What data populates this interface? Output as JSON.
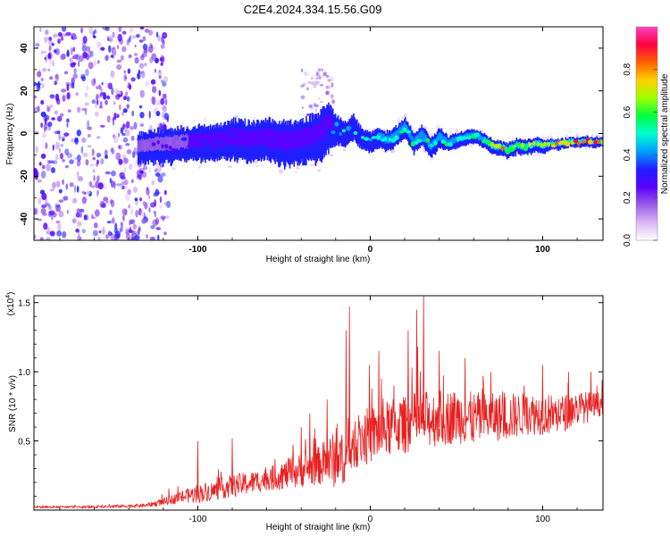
{
  "title": "C2E4.2024.334.15.56.G09",
  "chart_data": [
    {
      "type": "heatmap",
      "name": "spectrogram",
      "xlabel": "Height of straight line (km)",
      "ylabel": "Frequency (Hz)",
      "xlim": [
        -195,
        135
      ],
      "ylim": [
        -50,
        50
      ],
      "xticks": [
        -100,
        0,
        100
      ],
      "xtick_labels": [
        "-100",
        "0",
        "100"
      ],
      "yticks": [
        -40,
        -20,
        0,
        20,
        40
      ],
      "ytick_labels": [
        "-40",
        "-20",
        "0",
        "20",
        "40"
      ],
      "colorbar": {
        "label": "Normalized spectral amplitude",
        "range": [
          0,
          1
        ],
        "ticks": [
          0.0,
          0.2,
          0.4,
          0.6,
          0.8
        ],
        "tick_labels": [
          "0.0",
          "0.2",
          "0.4",
          "0.6",
          "0.8"
        ],
        "colors": [
          "#ffffff",
          "#d9b8f5",
          "#9a5ce8",
          "#5a00ff",
          "#1e1eff",
          "#00a0ff",
          "#00ffd0",
          "#00ff40",
          "#a0ff00",
          "#ffd000",
          "#ff6000",
          "#ff0040",
          "#ff40c0"
        ]
      },
      "noise_region_x": [
        -195,
        -125
      ],
      "ridge": {
        "x": [
          -135,
          -120,
          -105,
          -90,
          -80,
          -70,
          -60,
          -50,
          -40,
          -30,
          -25,
          -20,
          -15,
          -10,
          -5,
          0,
          5,
          10,
          15,
          20,
          25,
          30,
          35,
          40,
          45,
          50,
          55,
          60,
          65,
          70,
          75,
          80,
          85,
          90,
          95,
          100,
          105,
          110,
          115,
          120,
          125,
          130,
          135
        ],
        "freq": [
          -7,
          -6,
          -5,
          -4,
          -3,
          -4,
          -3,
          -5,
          -4,
          -2,
          3,
          2,
          0,
          3,
          -3,
          -4,
          -2,
          -4,
          -1,
          3,
          -5,
          -1,
          -7,
          -2,
          -5,
          -3,
          -2,
          -1,
          -3,
          -6,
          -7,
          -8,
          -6,
          -7,
          -5,
          -6,
          -5,
          -5,
          -4,
          -4,
          -4,
          -4,
          -4
        ],
        "width": [
          6,
          7,
          7,
          7,
          8,
          8,
          8,
          9,
          9,
          10,
          10,
          6,
          5,
          5,
          4,
          4,
          4,
          4,
          4,
          4,
          4,
          4,
          4,
          4,
          3,
          3,
          3,
          3,
          3,
          3,
          3,
          3,
          3,
          3,
          3,
          3,
          2,
          2,
          2,
          2,
          2,
          2,
          2
        ],
        "amplitude": [
          0.2,
          0.25,
          0.3,
          0.3,
          0.3,
          0.3,
          0.3,
          0.3,
          0.3,
          0.35,
          0.35,
          0.45,
          0.45,
          0.45,
          0.5,
          0.5,
          0.55,
          0.55,
          0.55,
          0.6,
          0.55,
          0.55,
          0.6,
          0.6,
          0.6,
          0.6,
          0.6,
          0.6,
          0.65,
          0.7,
          0.75,
          0.8,
          0.8,
          0.8,
          0.85,
          0.85,
          0.9,
          0.9,
          0.9,
          0.9,
          0.9,
          0.9,
          0.9
        ]
      }
    },
    {
      "type": "line",
      "name": "snr",
      "xlabel": "Height of straight line (km)",
      "ylabel": "SNR (10 * v/v)",
      "y_multiplier": "(x10^4)",
      "y_multiplier_base": "(x10",
      "y_multiplier_exp": "4",
      "y_multiplier_close": ")",
      "xlim": [
        -195,
        135
      ],
      "ylim": [
        0,
        1.55
      ],
      "xticks": [
        -100,
        0,
        100
      ],
      "xtick_labels": [
        "-100",
        "0",
        "100"
      ],
      "yticks": [
        0.5,
        1.0,
        1.5
      ],
      "ytick_labels": [
        "0.5",
        "1.0",
        "1.5"
      ],
      "color": "#e82020",
      "envelope": {
        "x": [
          -195,
          -160,
          -130,
          -120,
          -110,
          -100,
          -90,
          -80,
          -70,
          -60,
          -50,
          -40,
          -30,
          -25,
          -20,
          -15,
          -12,
          -10,
          -5,
          0,
          5,
          10,
          15,
          20,
          25,
          30,
          35,
          40,
          50,
          60,
          70,
          80,
          90,
          100,
          110,
          120,
          130,
          135
        ],
        "base": [
          0.02,
          0.02,
          0.03,
          0.05,
          0.08,
          0.1,
          0.12,
          0.15,
          0.17,
          0.2,
          0.22,
          0.25,
          0.28,
          0.3,
          0.3,
          0.32,
          0.35,
          0.4,
          0.45,
          0.48,
          0.5,
          0.52,
          0.55,
          0.55,
          0.58,
          0.58,
          0.6,
          0.6,
          0.62,
          0.6,
          0.62,
          0.62,
          0.65,
          0.65,
          0.65,
          0.7,
          0.72,
          0.75
        ],
        "spread": [
          0.01,
          0.01,
          0.02,
          0.04,
          0.06,
          0.1,
          0.1,
          0.12,
          0.12,
          0.12,
          0.15,
          0.18,
          0.2,
          0.25,
          0.3,
          0.25,
          0.2,
          0.2,
          0.3,
          0.3,
          0.3,
          0.3,
          0.3,
          0.3,
          0.3,
          0.3,
          0.3,
          0.3,
          0.28,
          0.28,
          0.25,
          0.25,
          0.22,
          0.22,
          0.2,
          0.18,
          0.15,
          0.12
        ]
      },
      "spikes": [
        {
          "x": -100,
          "y": 0.5
        },
        {
          "x": -80,
          "y": 0.52
        },
        {
          "x": -40,
          "y": 0.6
        },
        {
          "x": -35,
          "y": 0.7
        },
        {
          "x": -25,
          "y": 0.8
        },
        {
          "x": -14,
          "y": 1.3
        },
        {
          "x": -12,
          "y": 1.47
        },
        {
          "x": 5,
          "y": 1.15
        },
        {
          "x": 22,
          "y": 1.3
        },
        {
          "x": 27,
          "y": 1.45
        },
        {
          "x": 31,
          "y": 1.55
        },
        {
          "x": 40,
          "y": 1.15
        },
        {
          "x": 55,
          "y": 1.1
        },
        {
          "x": 70,
          "y": 1.0
        },
        {
          "x": 100,
          "y": 1.05
        },
        {
          "x": 115,
          "y": 1.0
        },
        {
          "x": 128,
          "y": 1.0
        }
      ]
    }
  ]
}
